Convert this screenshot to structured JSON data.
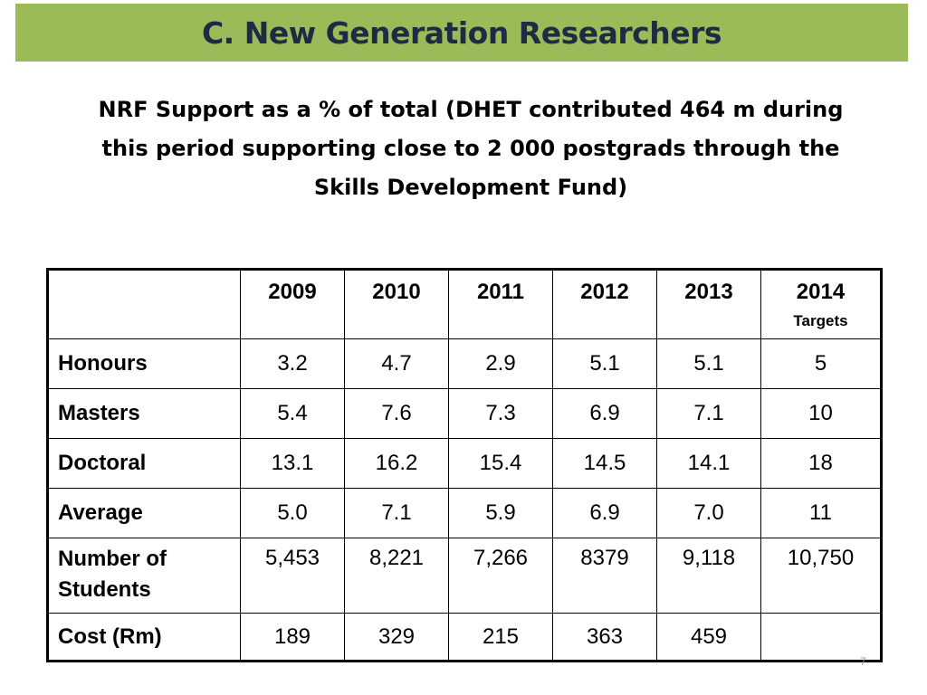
{
  "title": "C. New Generation Researchers",
  "subtitle_lines": [
    "NRF Support as a % of total (DHET contributed 464 m during",
    "this period supporting close to 2 000 postgrads through the",
    "Skills Development Fund)"
  ],
  "table": {
    "header": [
      {
        "year": "2009",
        "sub": ""
      },
      {
        "year": "2010",
        "sub": ""
      },
      {
        "year": "2011",
        "sub": ""
      },
      {
        "year": "2012",
        "sub": ""
      },
      {
        "year": "2013",
        "sub": ""
      },
      {
        "year": "2014",
        "sub": "Targets"
      }
    ],
    "rows": [
      {
        "label": "Honours",
        "values": [
          "3.2",
          "4.7",
          "2.9",
          "5.1",
          "5.1",
          "5"
        ]
      },
      {
        "label": "Masters",
        "values": [
          "5.4",
          "7.6",
          "7.3",
          "6.9",
          "7.1",
          "10"
        ]
      },
      {
        "label": "Doctoral",
        "values": [
          "13.1",
          "16.2",
          "15.4",
          "14.5",
          "14.1",
          "18"
        ]
      },
      {
        "label": "Average",
        "values": [
          "5.0",
          "7.1",
          "5.9",
          "6.9",
          "7.0",
          "11"
        ]
      },
      {
        "label_lines": [
          "Number of",
          "Students"
        ],
        "values": [
          "5,453",
          "8,221",
          "7,266",
          "8379",
          "9,118",
          "10,750"
        ]
      },
      {
        "label": "Cost (Rm)",
        "values": [
          "189",
          "329",
          "215",
          "363",
          "459",
          ""
        ]
      }
    ]
  },
  "page_number": "7"
}
